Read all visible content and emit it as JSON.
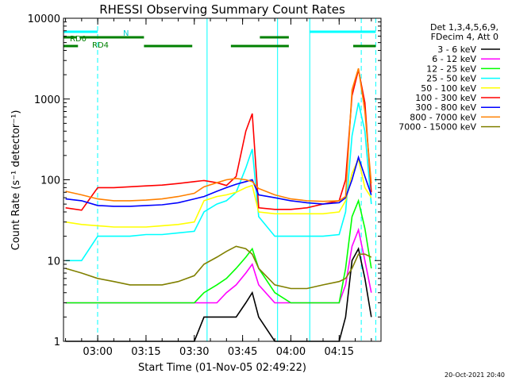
{
  "chart_data": {
    "type": "line",
    "title": "RHESSI Observing Summary Count Rates",
    "xlabel": "Start Time (01-Nov-05 02:49:22)",
    "ylabel": "Count Rate (s⁻¹ detector⁻¹)",
    "yscale": "log",
    "ylim": [
      1,
      10000
    ],
    "xlim": [
      "02:49:22",
      "04:28:00"
    ],
    "x_ticks": [
      "03:00",
      "03:15",
      "03:30",
      "03:45",
      "04:00",
      "04:15"
    ],
    "y_ticks": [
      "1",
      "10",
      "100",
      "1000",
      "10000"
    ],
    "legend_header": [
      "Det 1,3,4,5,6,9,",
      "FDecim 4, Att 0"
    ],
    "legend_position": "right",
    "timestamp": "20-Oct-2021 20:40",
    "flag_labels": {
      "rd0": "RD0",
      "rd4": "RD4",
      "n": "N"
    },
    "x_times": [
      "02:50",
      "02:55",
      "03:00",
      "03:05",
      "03:10",
      "03:15",
      "03:20",
      "03:25",
      "03:30",
      "03:33",
      "03:37",
      "03:40",
      "03:43",
      "03:46",
      "03:48",
      "03:50",
      "03:55",
      "04:00",
      "04:05",
      "04:10",
      "04:15",
      "04:17",
      "04:19",
      "04:21",
      "04:23",
      "04:25"
    ],
    "series": [
      {
        "name": "3 - 6 keV",
        "color": "#000000",
        "values": [
          1,
          1,
          1,
          1,
          1,
          1,
          1,
          1,
          1,
          2,
          2,
          2,
          2,
          3,
          4,
          2,
          1,
          1,
          1,
          1,
          1,
          2,
          10,
          14,
          6,
          2
        ]
      },
      {
        "name": "6 - 12 keV",
        "color": "#ff00ff",
        "values": [
          3,
          3,
          3,
          3,
          3,
          3,
          3,
          3,
          3,
          3,
          3,
          4,
          5,
          7,
          9,
          5,
          3,
          3,
          3,
          3,
          3,
          5,
          15,
          24,
          10,
          4
        ]
      },
      {
        "name": "12 - 25 keV",
        "color": "#00ff00",
        "values": [
          3,
          3,
          3,
          3,
          3,
          3,
          3,
          3,
          3,
          4,
          5,
          6,
          8,
          11,
          14,
          8,
          4,
          3,
          3,
          3,
          3,
          8,
          35,
          55,
          25,
          8
        ]
      },
      {
        "name": "25 - 50 keV",
        "color": "#00ffff",
        "values": [
          10,
          10,
          20,
          20,
          20,
          21,
          21,
          22,
          23,
          40,
          50,
          55,
          70,
          140,
          240,
          35,
          20,
          20,
          20,
          20,
          21,
          40,
          350,
          900,
          400,
          50
        ]
      },
      {
        "name": "50 - 100 keV",
        "color": "#ffff00",
        "values": [
          30,
          28,
          27,
          26,
          26,
          26,
          27,
          28,
          30,
          55,
          62,
          65,
          70,
          80,
          85,
          40,
          38,
          38,
          38,
          38,
          40,
          55,
          120,
          180,
          80,
          60
        ]
      },
      {
        "name": "100 - 300 keV",
        "color": "#ff0000",
        "values": [
          45,
          42,
          80,
          80,
          82,
          84,
          86,
          90,
          95,
          98,
          92,
          85,
          110,
          400,
          660,
          45,
          43,
          43,
          45,
          50,
          55,
          100,
          1100,
          2300,
          900,
          70
        ]
      },
      {
        "name": "300 - 800 keV",
        "color": "#0000ff",
        "values": [
          58,
          55,
          48,
          47,
          47,
          48,
          49,
          52,
          58,
          62,
          72,
          80,
          88,
          95,
          100,
          65,
          60,
          55,
          52,
          50,
          52,
          60,
          100,
          190,
          110,
          65
        ]
      },
      {
        "name": "800 - 7000 keV",
        "color": "#ff8000",
        "values": [
          72,
          65,
          58,
          55,
          55,
          56,
          58,
          62,
          68,
          82,
          92,
          100,
          104,
          100,
          95,
          78,
          65,
          58,
          55,
          54,
          55,
          62,
          1300,
          2400,
          700,
          90
        ]
      },
      {
        "name": "7000 - 15000 keV",
        "color": "#808000",
        "values": [
          8,
          7,
          6,
          5.5,
          5,
          5,
          5,
          5.5,
          6.5,
          9,
          11,
          13,
          15,
          14,
          12,
          8,
          5,
          4.5,
          4.5,
          5,
          5.5,
          6,
          8,
          12,
          12,
          11
        ]
      }
    ]
  }
}
